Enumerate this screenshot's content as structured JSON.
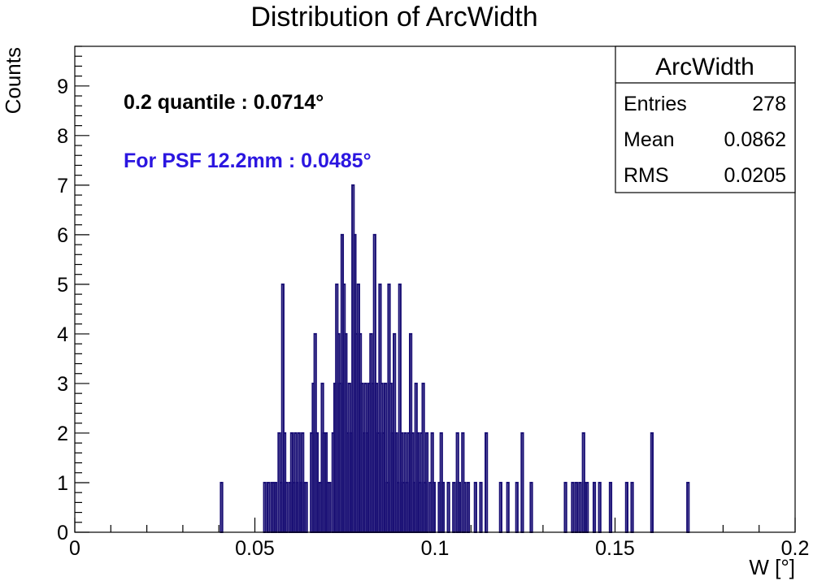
{
  "chart_data": {
    "type": "bar",
    "title": "Distribution of ArcWidth",
    "xlabel": "W [°]",
    "ylabel": "Counts",
    "xlim": [
      0,
      0.2
    ],
    "ylim": [
      0,
      9.8
    ],
    "x_ticks": [
      "0",
      "0.05",
      "0.1",
      "0.15",
      "0.2"
    ],
    "y_ticks": [
      "0",
      "1",
      "2",
      "3",
      "4",
      "5",
      "6",
      "7",
      "8",
      "9"
    ],
    "bin_width": 0.0005,
    "color": "#1a1075",
    "series": [
      {
        "values": [
          [
            0.0405,
            1
          ],
          [
            0.0525,
            1
          ],
          [
            0.0535,
            1
          ],
          [
            0.0545,
            1
          ],
          [
            0.055,
            1
          ],
          [
            0.0555,
            1
          ],
          [
            0.0565,
            2
          ],
          [
            0.057,
            1
          ],
          [
            0.0575,
            5
          ],
          [
            0.058,
            2
          ],
          [
            0.0585,
            1
          ],
          [
            0.0595,
            1
          ],
          [
            0.06,
            2
          ],
          [
            0.0605,
            1
          ],
          [
            0.061,
            2
          ],
          [
            0.0615,
            1
          ],
          [
            0.062,
            2
          ],
          [
            0.0625,
            1
          ],
          [
            0.063,
            2
          ],
          [
            0.0635,
            1
          ],
          [
            0.064,
            1
          ],
          [
            0.0655,
            2
          ],
          [
            0.066,
            3
          ],
          [
            0.0665,
            4
          ],
          [
            0.067,
            2
          ],
          [
            0.0675,
            1
          ],
          [
            0.068,
            1
          ],
          [
            0.0685,
            3
          ],
          [
            0.069,
            2
          ],
          [
            0.0695,
            2
          ],
          [
            0.07,
            1
          ],
          [
            0.0705,
            1
          ],
          [
            0.0715,
            2
          ],
          [
            0.072,
            3
          ],
          [
            0.0725,
            5
          ],
          [
            0.073,
            4
          ],
          [
            0.0735,
            3
          ],
          [
            0.074,
            6
          ],
          [
            0.0745,
            5
          ],
          [
            0.075,
            4
          ],
          [
            0.0755,
            2
          ],
          [
            0.076,
            3
          ],
          [
            0.0765,
            2
          ],
          [
            0.077,
            7
          ],
          [
            0.0775,
            6
          ],
          [
            0.078,
            4
          ],
          [
            0.0785,
            5
          ],
          [
            0.079,
            4
          ],
          [
            0.0795,
            3
          ],
          [
            0.08,
            2
          ],
          [
            0.0805,
            3
          ],
          [
            0.081,
            2
          ],
          [
            0.0815,
            3
          ],
          [
            0.082,
            4
          ],
          [
            0.0825,
            3
          ],
          [
            0.083,
            6
          ],
          [
            0.0835,
            3
          ],
          [
            0.084,
            2
          ],
          [
            0.0845,
            5
          ],
          [
            0.085,
            3
          ],
          [
            0.0855,
            2
          ],
          [
            0.086,
            3
          ],
          [
            0.0865,
            1
          ],
          [
            0.087,
            5
          ],
          [
            0.0875,
            3
          ],
          [
            0.088,
            2
          ],
          [
            0.0885,
            4
          ],
          [
            0.089,
            2
          ],
          [
            0.0895,
            1
          ],
          [
            0.09,
            5
          ],
          [
            0.0905,
            2
          ],
          [
            0.091,
            1
          ],
          [
            0.0915,
            2
          ],
          [
            0.092,
            1
          ],
          [
            0.0925,
            2
          ],
          [
            0.093,
            4
          ],
          [
            0.0935,
            2
          ],
          [
            0.094,
            1
          ],
          [
            0.0945,
            3
          ],
          [
            0.095,
            2
          ],
          [
            0.0955,
            1
          ],
          [
            0.096,
            2
          ],
          [
            0.0965,
            3
          ],
          [
            0.097,
            1
          ],
          [
            0.0975,
            2
          ],
          [
            0.0985,
            1
          ],
          [
            0.099,
            2
          ],
          [
            0.0995,
            1
          ],
          [
            0.101,
            1
          ],
          [
            0.1015,
            2
          ],
          [
            0.102,
            1
          ],
          [
            0.1035,
            1
          ],
          [
            0.105,
            1
          ],
          [
            0.106,
            2
          ],
          [
            0.1065,
            1
          ],
          [
            0.1075,
            2
          ],
          [
            0.108,
            1
          ],
          [
            0.109,
            1
          ],
          [
            0.111,
            1
          ],
          [
            0.1125,
            1
          ],
          [
            0.114,
            2
          ],
          [
            0.118,
            1
          ],
          [
            0.12,
            1
          ],
          [
            0.1225,
            1
          ],
          [
            0.124,
            2
          ],
          [
            0.1265,
            1
          ],
          [
            0.136,
            1
          ],
          [
            0.138,
            1
          ],
          [
            0.139,
            1
          ],
          [
            0.14,
            1
          ],
          [
            0.141,
            2
          ],
          [
            0.1415,
            1
          ],
          [
            0.142,
            1
          ],
          [
            0.144,
            1
          ],
          [
            0.1455,
            1
          ],
          [
            0.1485,
            1
          ],
          [
            0.153,
            1
          ],
          [
            0.1545,
            1
          ],
          [
            0.16,
            2
          ],
          [
            0.17,
            1
          ]
        ]
      }
    ]
  },
  "stats_box": {
    "title": "ArcWidth",
    "rows": [
      {
        "label": "Entries",
        "value": "278"
      },
      {
        "label": "Mean",
        "value": "0.0862"
      },
      {
        "label": "RMS",
        "value": "0.0205"
      }
    ]
  },
  "annotations": {
    "quantile": "0.2 quantile : 0.0714°",
    "psf": "For PSF 12.2mm : 0.0485°",
    "psf_color": "#2b16e0"
  }
}
